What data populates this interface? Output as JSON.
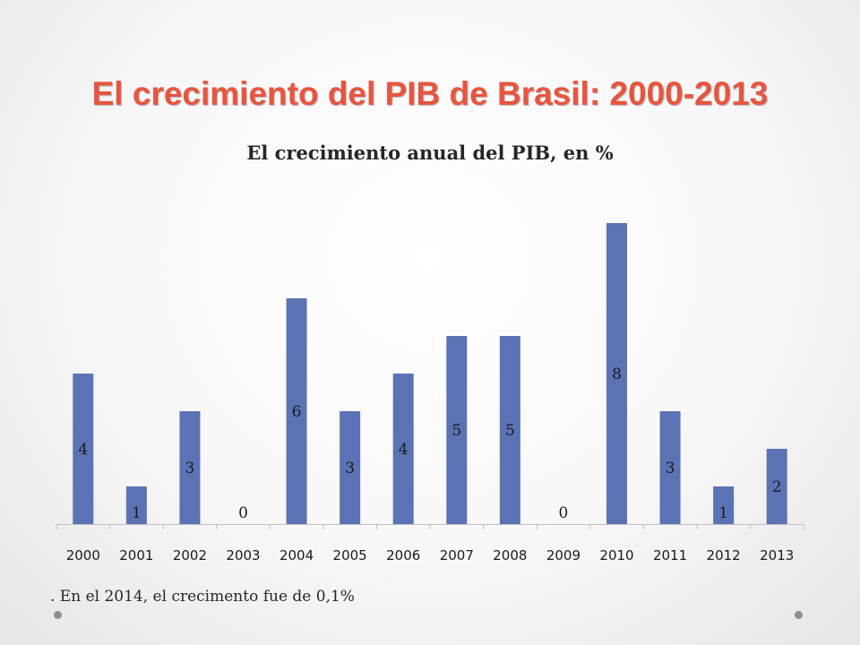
{
  "slide": {
    "title": "El crecimiento del PIB de Brasil: 2000-2013",
    "footnote": ". En el 2014, el crecimento fue de 0,1%",
    "title_color": "#e8553e"
  },
  "chart_data": {
    "type": "bar",
    "title": "El crecimiento anual del PIB, en %",
    "categories": [
      "2000",
      "2001",
      "2002",
      "2003",
      "2004",
      "2005",
      "2006",
      "2007",
      "2008",
      "2009",
      "2010",
      "2011",
      "2012",
      "2013"
    ],
    "values": [
      4,
      1,
      3,
      0,
      6,
      3,
      4,
      5,
      5,
      0,
      8,
      3,
      1,
      2
    ],
    "data_labels": [
      "4",
      "1",
      "3",
      "0",
      "6",
      "3",
      "4",
      "5",
      "5",
      "0",
      "8",
      "3",
      "1",
      "2"
    ],
    "xlabel": "",
    "ylabel": "",
    "ylim": [
      0,
      8
    ],
    "grid": false,
    "legend": "none",
    "bar_color": "#5b73b5"
  }
}
